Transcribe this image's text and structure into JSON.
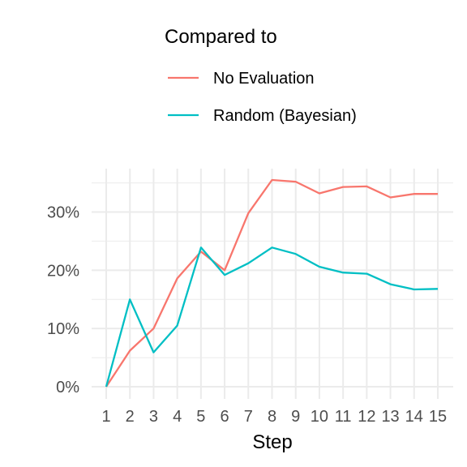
{
  "chart_data": {
    "type": "line",
    "title": "",
    "xlabel": "Step",
    "ylabel": "",
    "x": [
      1,
      2,
      3,
      4,
      5,
      6,
      7,
      8,
      9,
      10,
      11,
      12,
      13,
      14,
      15
    ],
    "xlim": [
      1,
      15
    ],
    "ylim": [
      0,
      0.36
    ],
    "yticks": [
      0,
      0.1,
      0.2,
      0.3
    ],
    "ytick_labels": [
      "0%",
      "10%",
      "20%",
      "30%"
    ],
    "grid": true,
    "legend": {
      "title": "Compared to",
      "placement": "top"
    },
    "series": [
      {
        "name": "No Evaluation",
        "color": "#F8766D",
        "values": [
          0.0,
          0.062,
          0.1,
          0.186,
          0.232,
          0.2,
          0.298,
          0.355,
          0.352,
          0.332,
          0.343,
          0.344,
          0.325,
          0.331,
          0.331
        ]
      },
      {
        "name": "Random (Bayesian)",
        "color": "#00BFC4",
        "values": [
          0.0,
          0.15,
          0.059,
          0.105,
          0.239,
          0.192,
          0.212,
          0.239,
          0.228,
          0.206,
          0.196,
          0.194,
          0.176,
          0.167,
          0.168
        ]
      }
    ]
  }
}
